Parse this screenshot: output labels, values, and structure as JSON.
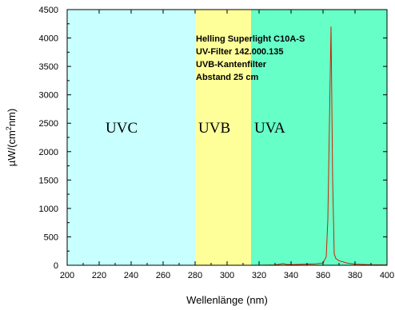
{
  "chart_data": {
    "type": "line",
    "xlabel": "Wellenlänge (nm)",
    "ylabel_parts": [
      "µW/(cm",
      "2",
      "nm)"
    ],
    "xlim": [
      200,
      400
    ],
    "ylim": [
      0,
      4500
    ],
    "xticks": [
      200,
      220,
      240,
      260,
      280,
      300,
      320,
      340,
      360,
      380,
      400
    ],
    "yticks": [
      0,
      500,
      1000,
      1500,
      2000,
      2500,
      3000,
      3500,
      4000,
      4500
    ],
    "grid": false,
    "regions": [
      {
        "label": "UVC",
        "x0": 200,
        "x1": 280,
        "color": "#c8ffff"
      },
      {
        "label": "UVB",
        "x0": 280,
        "x1": 315,
        "color": "#ffff99"
      },
      {
        "label": "UVA",
        "x0": 315,
        "x1": 400,
        "color": "#66ffc8"
      }
    ],
    "annotation": [
      "Helling Superlight C10A-S",
      "UV-Filter 142.000.135",
      "UVB-Kantenfilter",
      "Abstand 25 cm"
    ],
    "series": [
      {
        "color": "#cc2200",
        "x": [
          200,
          260,
          300,
          320,
          330,
          333,
          335,
          337,
          340,
          350,
          355,
          360,
          362,
          363,
          364,
          365,
          366,
          367,
          368,
          370,
          375,
          380,
          390,
          400
        ],
        "y": [
          0,
          0,
          0,
          0,
          5,
          20,
          30,
          15,
          10,
          20,
          25,
          40,
          150,
          800,
          2500,
          4200,
          1500,
          200,
          120,
          80,
          40,
          20,
          8,
          5
        ]
      }
    ]
  }
}
